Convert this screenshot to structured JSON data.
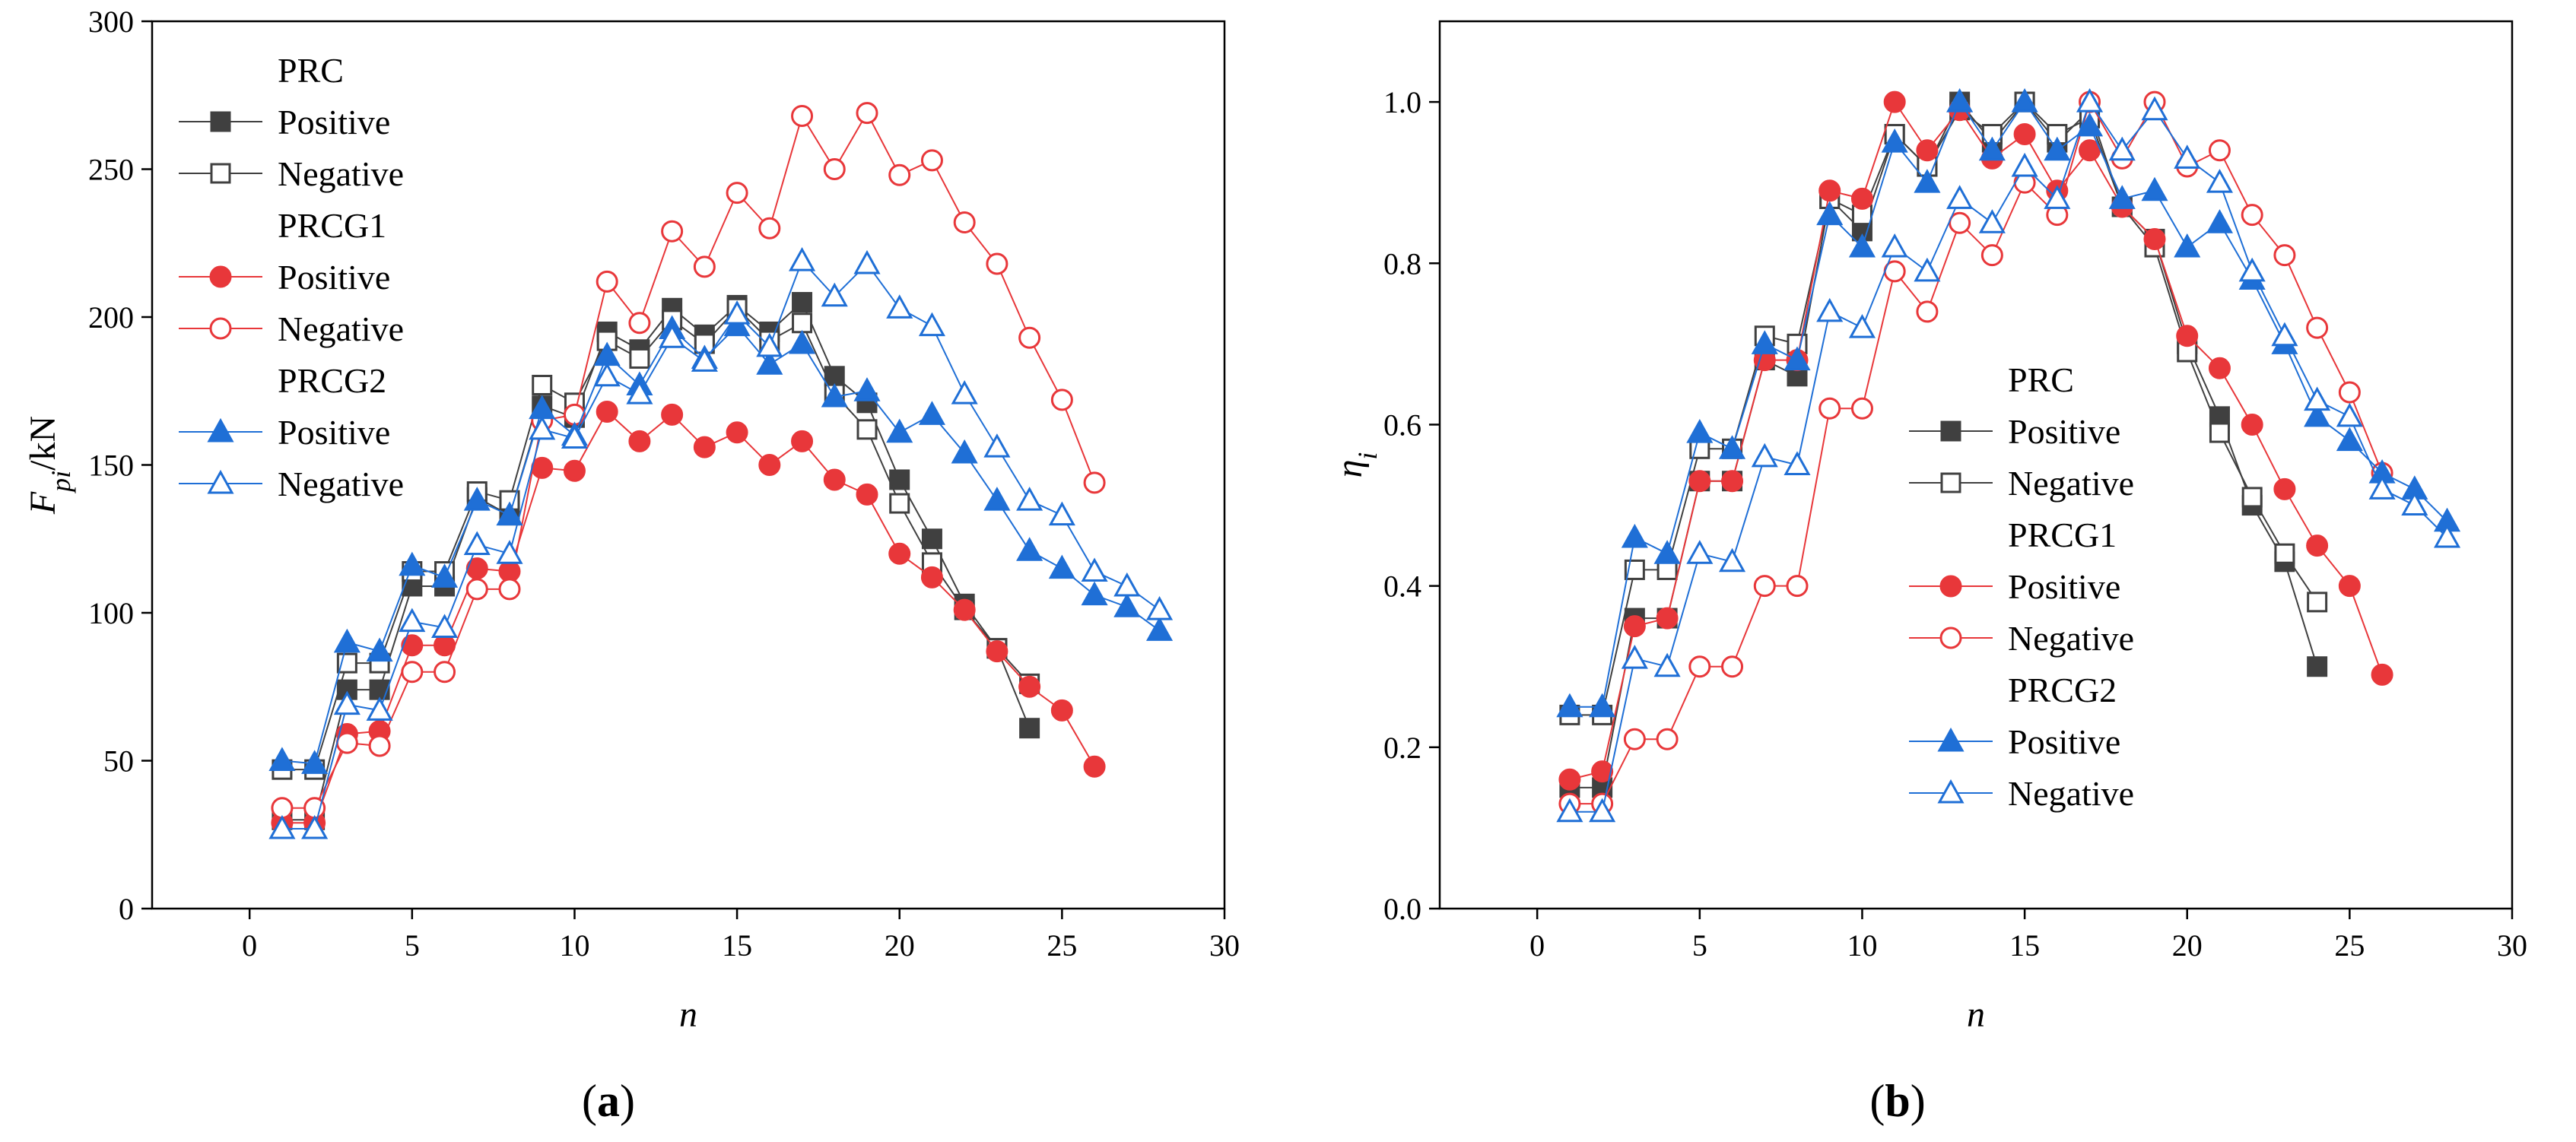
{
  "colors": {
    "PRC": "#404040",
    "PRCG1": "#e8373a",
    "PRCG2": "#1f6fd6"
  },
  "panels": [
    {
      "label": "(a)",
      "label_letter": "a"
    },
    {
      "label": "(b)",
      "label_letter": "b"
    }
  ],
  "chart_data": [
    {
      "type": "line",
      "panel": "a",
      "xlabel": "n",
      "ylabel_main": "F",
      "ylabel_sub": "pi",
      "ylabel_suffix": "/kN",
      "xlim": [
        -3,
        30
      ],
      "ylim": [
        0,
        300
      ],
      "xticks": [
        0,
        5,
        10,
        15,
        20,
        25,
        30
      ],
      "yticks": [
        0,
        50,
        100,
        150,
        200,
        250,
        300
      ],
      "tick_labels_x": [
        "0",
        "5",
        "10",
        "15",
        "20",
        "25",
        "30"
      ],
      "tick_labels_y": [
        "0",
        "50",
        "100",
        "150",
        "200",
        "250",
        "300"
      ],
      "legend_position": "top-left",
      "legend": [
        {
          "group": "PRC",
          "items": [
            "Positive",
            "Negative"
          ]
        },
        {
          "group": "PRCG1",
          "items": [
            "Positive",
            "Negative"
          ]
        },
        {
          "group": "PRCG2",
          "items": [
            "Positive",
            "Negative"
          ]
        }
      ],
      "series": [
        {
          "group": "PRC",
          "name": "Positive",
          "marker": "square",
          "filled": true,
          "x": [
            1,
            2,
            3,
            4,
            5,
            6,
            7,
            8,
            9,
            10,
            11,
            12,
            13,
            14,
            15,
            16,
            17,
            18,
            19,
            20,
            21,
            22,
            23,
            24
          ],
          "y": [
            30,
            30,
            74,
            74,
            109,
            109,
            139,
            133,
            170,
            166,
            195,
            189,
            203,
            194,
            204,
            195,
            205,
            180,
            171,
            145,
            125,
            103,
            88,
            61
          ]
        },
        {
          "group": "PRC",
          "name": "Negative",
          "marker": "square",
          "filled": false,
          "x": [
            1,
            2,
            3,
            4,
            5,
            6,
            7,
            8,
            9,
            10,
            11,
            12,
            13,
            14,
            15,
            16,
            17,
            18,
            19,
            20,
            21,
            22,
            23,
            24
          ],
          "y": [
            47,
            47,
            83,
            83,
            114,
            114,
            141,
            138,
            177,
            171,
            192,
            186,
            199,
            191,
            203,
            192,
            198,
            174,
            162,
            137,
            117,
            101,
            88,
            76
          ]
        },
        {
          "group": "PRCG1",
          "name": "Positive",
          "marker": "circle",
          "filled": true,
          "x": [
            1,
            2,
            3,
            4,
            5,
            6,
            7,
            8,
            9,
            10,
            11,
            12,
            13,
            14,
            15,
            16,
            17,
            18,
            19,
            20,
            21,
            22,
            23,
            24,
            25,
            26
          ],
          "y": [
            29,
            29,
            59,
            60,
            89,
            89,
            115,
            114,
            149,
            148,
            168,
            158,
            167,
            156,
            161,
            150,
            158,
            145,
            140,
            120,
            112,
            101,
            87,
            75,
            67,
            48
          ]
        },
        {
          "group": "PRCG1",
          "name": "Negative",
          "marker": "circle",
          "filled": false,
          "x": [
            1,
            2,
            3,
            4,
            5,
            6,
            7,
            8,
            9,
            10,
            11,
            12,
            13,
            14,
            15,
            16,
            17,
            18,
            19,
            20,
            21,
            22,
            23,
            24,
            25,
            26
          ],
          "y": [
            34,
            34,
            56,
            55,
            80,
            80,
            108,
            108,
            165,
            167,
            212,
            198,
            229,
            217,
            242,
            230,
            268,
            250,
            269,
            248,
            253,
            232,
            218,
            193,
            172,
            144
          ]
        },
        {
          "group": "PRCG2",
          "name": "Positive",
          "marker": "triangle",
          "filled": true,
          "x": [
            1,
            2,
            3,
            4,
            5,
            6,
            7,
            8,
            9,
            10,
            11,
            12,
            13,
            14,
            15,
            16,
            17,
            18,
            19,
            20,
            21,
            22,
            23,
            24,
            25,
            26,
            27,
            28
          ],
          "y": [
            50,
            49,
            90,
            87,
            116,
            112,
            138,
            133,
            169,
            160,
            187,
            177,
            196,
            186,
            197,
            184,
            191,
            173,
            175,
            161,
            167,
            154,
            138,
            121,
            115,
            106,
            102,
            94
          ]
        },
        {
          "group": "PRCG2",
          "name": "Negative",
          "marker": "triangle",
          "filled": false,
          "x": [
            1,
            2,
            3,
            4,
            5,
            6,
            7,
            8,
            9,
            10,
            11,
            12,
            13,
            14,
            15,
            16,
            17,
            18,
            19,
            20,
            21,
            22,
            23,
            24,
            25,
            26,
            27,
            28
          ],
          "y": [
            27,
            27,
            69,
            67,
            97,
            95,
            123,
            120,
            162,
            159,
            180,
            174,
            193,
            185,
            201,
            190,
            219,
            207,
            218,
            203,
            197,
            174,
            156,
            138,
            133,
            114,
            109,
            101
          ]
        }
      ]
    },
    {
      "type": "line",
      "panel": "b",
      "xlabel": "n",
      "ylabel_main": "η",
      "ylabel_sub": "i",
      "ylabel_suffix": "",
      "xlim": [
        -3,
        30
      ],
      "ylim": [
        0,
        1.1
      ],
      "xticks": [
        0,
        5,
        10,
        15,
        20,
        25,
        30
      ],
      "yticks": [
        0,
        0.2,
        0.4,
        0.6,
        0.8,
        1.0
      ],
      "tick_labels_x": [
        "0",
        "5",
        "10",
        "15",
        "20",
        "25",
        "30"
      ],
      "tick_labels_y": [
        "0.0",
        "0.2",
        "0.4",
        "0.6",
        "0.8",
        "1.0"
      ],
      "legend_position": "center-right",
      "legend": [
        {
          "group": "PRC",
          "items": [
            "Positive",
            "Negative"
          ]
        },
        {
          "group": "PRCG1",
          "items": [
            "Positive",
            "Negative"
          ]
        },
        {
          "group": "PRCG2",
          "items": [
            "Positive",
            "Negative"
          ]
        }
      ],
      "series": [
        {
          "group": "PRC",
          "name": "Positive",
          "marker": "square",
          "filled": true,
          "x": [
            1,
            2,
            3,
            4,
            5,
            6,
            7,
            8,
            9,
            10,
            11,
            12,
            13,
            14,
            15,
            16,
            17,
            18,
            19,
            20,
            21,
            22,
            23,
            24
          ],
          "y": [
            0.15,
            0.15,
            0.36,
            0.36,
            0.53,
            0.53,
            0.68,
            0.66,
            0.88,
            0.84,
            0.96,
            0.92,
            1.0,
            0.95,
            1.0,
            0.95,
            0.99,
            0.87,
            0.83,
            0.7,
            0.61,
            0.5,
            0.43,
            0.3
          ]
        },
        {
          "group": "PRC",
          "name": "Negative",
          "marker": "square",
          "filled": false,
          "x": [
            1,
            2,
            3,
            4,
            5,
            6,
            7,
            8,
            9,
            10,
            11,
            12,
            13,
            14,
            15,
            16,
            17,
            18,
            19,
            20,
            21,
            22,
            23,
            24
          ],
          "y": [
            0.24,
            0.24,
            0.42,
            0.42,
            0.57,
            0.57,
            0.71,
            0.7,
            0.88,
            0.86,
            0.96,
            0.92,
            0.99,
            0.96,
            1.0,
            0.96,
            0.98,
            0.87,
            0.82,
            0.69,
            0.59,
            0.51,
            0.44,
            0.38
          ]
        },
        {
          "group": "PRCG1",
          "name": "Positive",
          "marker": "circle",
          "filled": true,
          "x": [
            1,
            2,
            3,
            4,
            5,
            6,
            7,
            8,
            9,
            10,
            11,
            12,
            13,
            14,
            15,
            16,
            17,
            18,
            19,
            20,
            21,
            22,
            23,
            24,
            25,
            26
          ],
          "y": [
            0.16,
            0.17,
            0.35,
            0.36,
            0.53,
            0.53,
            0.68,
            0.68,
            0.89,
            0.88,
            1.0,
            0.94,
            0.99,
            0.93,
            0.96,
            0.89,
            0.94,
            0.87,
            0.83,
            0.71,
            0.67,
            0.6,
            0.52,
            0.45,
            0.4,
            0.29
          ]
        },
        {
          "group": "PRCG1",
          "name": "Negative",
          "marker": "circle",
          "filled": false,
          "x": [
            1,
            2,
            3,
            4,
            5,
            6,
            7,
            8,
            9,
            10,
            11,
            12,
            13,
            14,
            15,
            16,
            17,
            18,
            19,
            20,
            21,
            22,
            23,
            24,
            25,
            26
          ],
          "y": [
            0.13,
            0.13,
            0.21,
            0.21,
            0.3,
            0.3,
            0.4,
            0.4,
            0.62,
            0.62,
            0.79,
            0.74,
            0.85,
            0.81,
            0.9,
            0.86,
            1.0,
            0.93,
            1.0,
            0.92,
            0.94,
            0.86,
            0.81,
            0.72,
            0.64,
            0.54
          ]
        },
        {
          "group": "PRCG2",
          "name": "Positive",
          "marker": "triangle",
          "filled": true,
          "x": [
            1,
            2,
            3,
            4,
            5,
            6,
            7,
            8,
            9,
            10,
            11,
            12,
            13,
            14,
            15,
            16,
            17,
            18,
            19,
            20,
            21,
            22,
            23,
            24,
            25,
            26,
            27,
            28
          ],
          "y": [
            0.25,
            0.25,
            0.46,
            0.44,
            0.59,
            0.57,
            0.7,
            0.68,
            0.86,
            0.82,
            0.95,
            0.9,
            1.0,
            0.94,
            1.0,
            0.94,
            0.97,
            0.88,
            0.89,
            0.82,
            0.85,
            0.78,
            0.7,
            0.61,
            0.58,
            0.54,
            0.52,
            0.48
          ]
        },
        {
          "group": "PRCG2",
          "name": "Negative",
          "marker": "triangle",
          "filled": false,
          "x": [
            1,
            2,
            3,
            4,
            5,
            6,
            7,
            8,
            9,
            10,
            11,
            12,
            13,
            14,
            15,
            16,
            17,
            18,
            19,
            20,
            21,
            22,
            23,
            24,
            25,
            26,
            27,
            28
          ],
          "y": [
            0.12,
            0.12,
            0.31,
            0.3,
            0.44,
            0.43,
            0.56,
            0.55,
            0.74,
            0.72,
            0.82,
            0.79,
            0.88,
            0.85,
            0.92,
            0.88,
            1.0,
            0.94,
            0.99,
            0.93,
            0.9,
            0.79,
            0.71,
            0.63,
            0.61,
            0.52,
            0.5,
            0.46
          ]
        }
      ]
    }
  ]
}
